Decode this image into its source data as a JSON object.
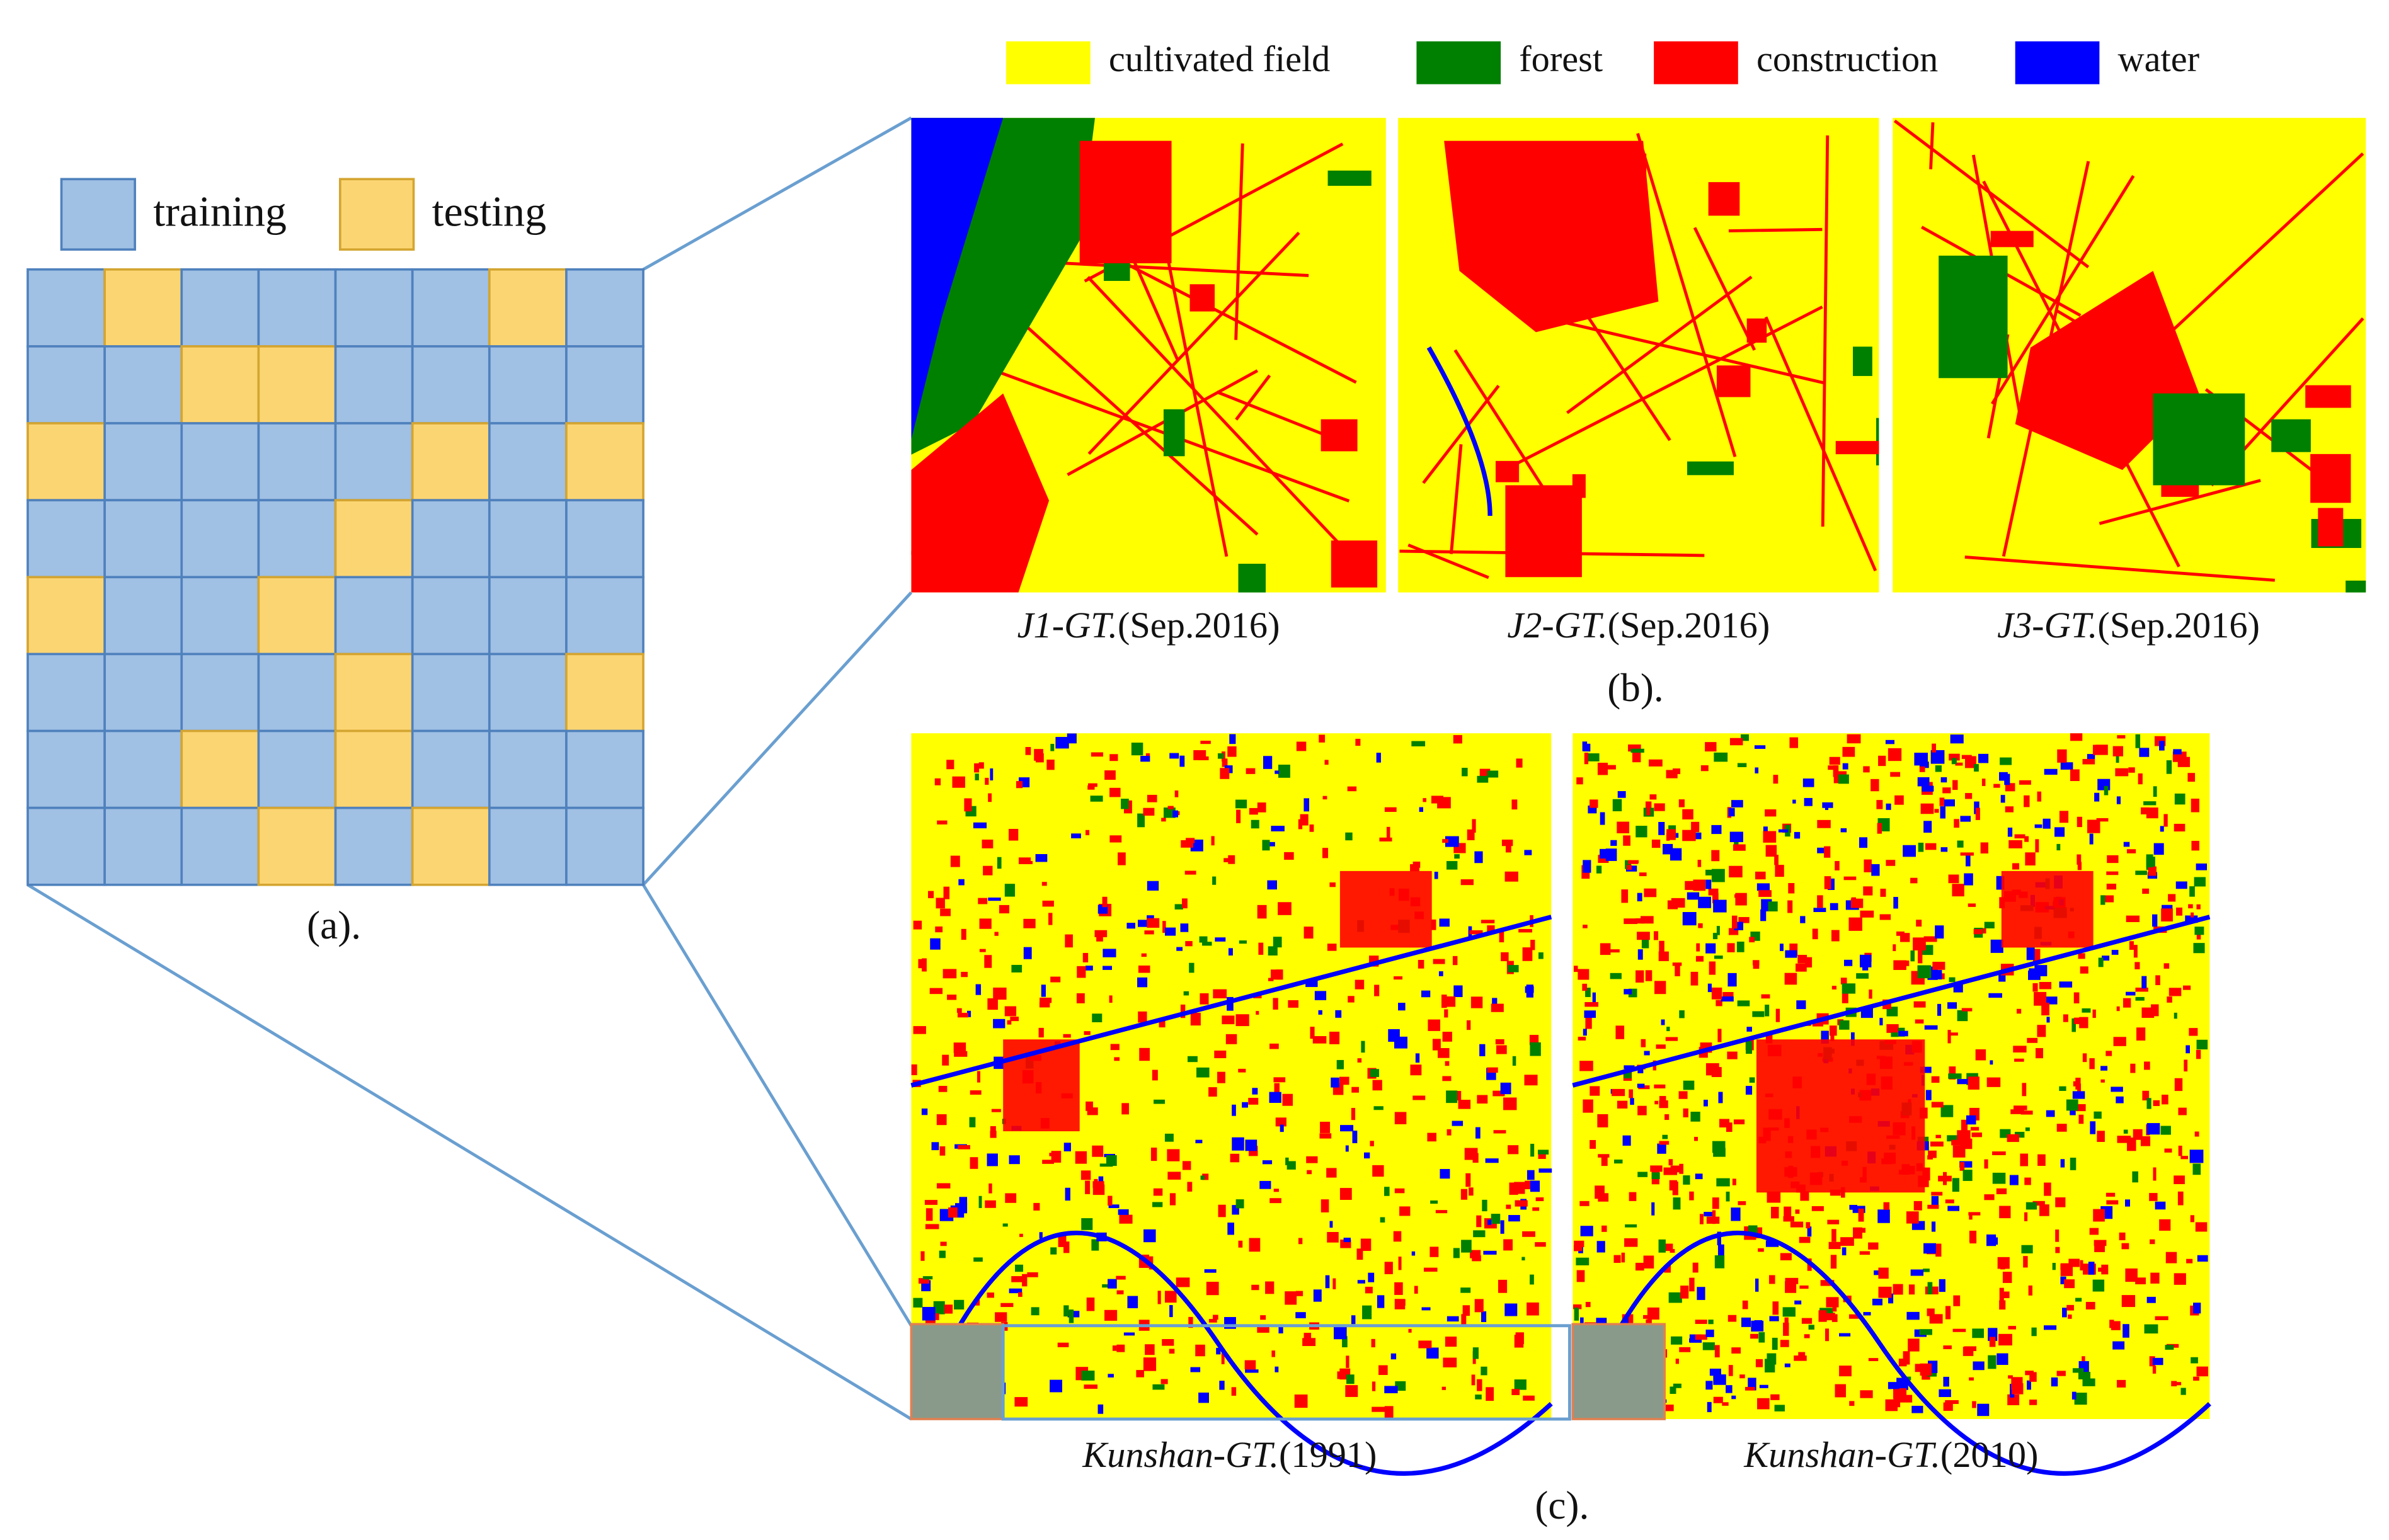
{
  "legend_a": {
    "items": [
      "training",
      "testing"
    ]
  },
  "caption_a": "(a).",
  "legend_b": {
    "items": [
      "cultivated field",
      "forest",
      "construction",
      "water"
    ]
  },
  "maps_b": [
    {
      "italic": "J1-GT.",
      "text": "(Sep.2016)"
    },
    {
      "italic": "J2-GT.",
      "text": "(Sep.2016)"
    },
    {
      "italic": "J3-GT.",
      "text": "(Sep.2016)"
    }
  ],
  "caption_b": "(b).",
  "maps_c": [
    {
      "italic": "Kunshan-GT.",
      "text": "(1991)"
    },
    {
      "italic": "Kunshan-GT.",
      "text": "(2010)"
    }
  ],
  "caption_c": "(c)."
}
